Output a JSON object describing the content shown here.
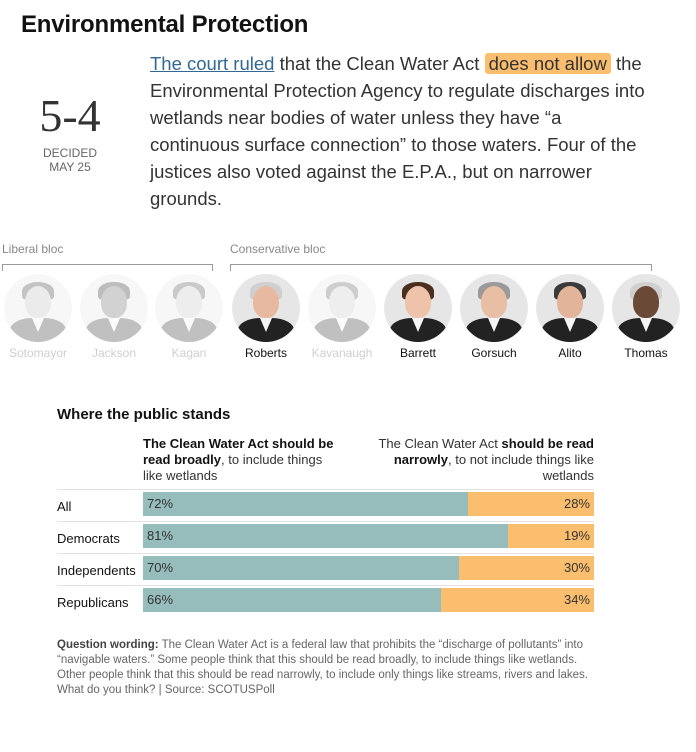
{
  "title": "Environmental Protection",
  "vote": "5-4",
  "decided_label": "DECIDED",
  "decided_date": "MAY 25",
  "summary": {
    "link_text": "The court ruled",
    "part1": " that the Clean Water Act ",
    "highlight": "does not allow",
    "part2": " the Environmental Protection Agency to regulate discharges into wetlands near bodies of water unless they have “a continuous surface connection” to those waters. Four of the justices also voted against the E.P.A., but on narrower grounds."
  },
  "blocs": {
    "liberal": "Liberal bloc",
    "conservative": "Conservative bloc"
  },
  "justices": [
    {
      "name": "Sotomayor",
      "with_majority": false,
      "skin": "#d8b49a",
      "hair": "#3a2a1e"
    },
    {
      "name": "Jackson",
      "with_majority": false,
      "skin": "#8a5a3c",
      "hair": "#1e1410"
    },
    {
      "name": "Kagan",
      "with_majority": false,
      "skin": "#e0bba0",
      "hair": "#5a4030"
    },
    {
      "name": "Roberts",
      "with_majority": true,
      "skin": "#e7b9a0",
      "hair": "#cfcfcf"
    },
    {
      "name": "Kavanaugh",
      "with_majority": false,
      "skin": "#e5bca0",
      "hair": "#6a5040"
    },
    {
      "name": "Barrett",
      "with_majority": true,
      "skin": "#eec3aa",
      "hair": "#4a2e1e"
    },
    {
      "name": "Gorsuch",
      "with_majority": true,
      "skin": "#e8bea4",
      "hair": "#9a9a9a"
    },
    {
      "name": "Alito",
      "with_majority": true,
      "skin": "#e2b59a",
      "hair": "#3a3a3a"
    },
    {
      "name": "Thomas",
      "with_majority": true,
      "skin": "#6a4a36",
      "hair": "#d0d0d0"
    }
  ],
  "poll": {
    "title": "Where the public stands",
    "left_bold": "The Clean Water Act should be read broadly",
    "left_rest": ", to include things like wetlands",
    "right_pre": "The Clean Water Act ",
    "right_bold": "should be read narrowly",
    "right_rest": ", to not include things like wetlands"
  },
  "chart_data": {
    "type": "bar",
    "stacked": true,
    "categories": [
      "All",
      "Democrats",
      "Independents",
      "Republicans"
    ],
    "series": [
      {
        "name": "The Clean Water Act should be read broadly, to include things like wetlands",
        "values": [
          72,
          81,
          70,
          66
        ],
        "color": "#96bcbc"
      },
      {
        "name": "The Clean Water Act should be read narrowly, to not include things like wetlands",
        "values": [
          28,
          19,
          30,
          34
        ],
        "color": "#fbbe6e"
      }
    ],
    "ylim": [
      0,
      100
    ]
  },
  "note": {
    "label": "Question wording:",
    "text": " The Clean Water Act is a federal law that prohibits the “discharge of pollutants” into “navigable waters.” Some people think that this should be read broadly, to include things like wetlands. Other people think that this should be read narrowly, to include only things like streams, rivers and lakes. What do you think? | Source: SCOTUSPoll"
  },
  "colors": {
    "broad": "#96bcbc",
    "narrow": "#fbbe6e",
    "link": "#326891"
  }
}
